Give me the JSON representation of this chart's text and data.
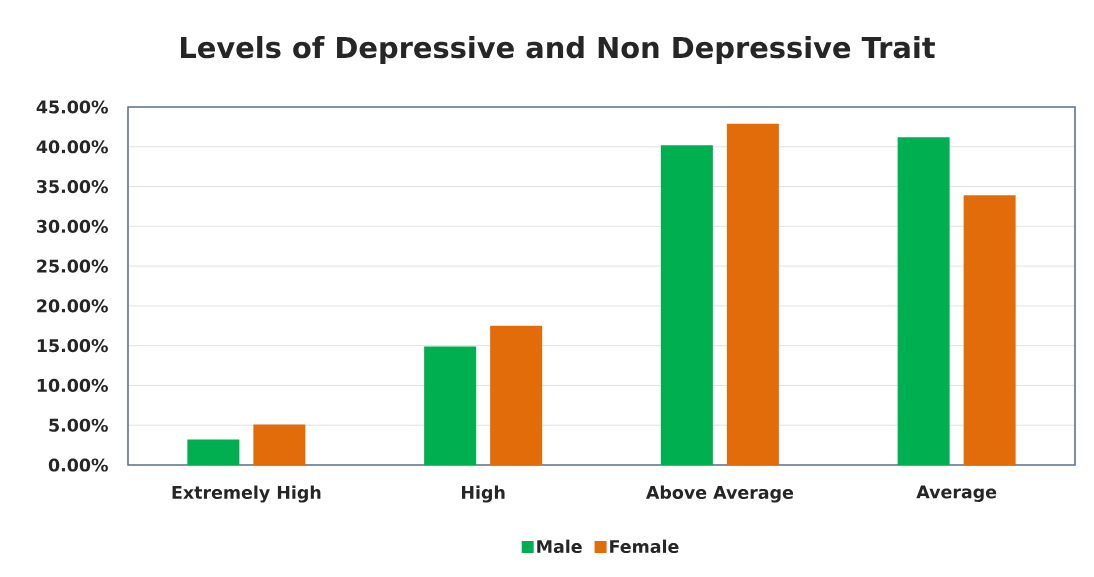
{
  "chart_data": {
    "type": "bar",
    "title": "Levels of Depressive and Non Depressive Trait",
    "categories": [
      "Extremely High",
      "High",
      "Above Average",
      "Average"
    ],
    "series": [
      {
        "name": "Male",
        "color": "#00b050",
        "values": [
          3.2,
          14.9,
          40.2,
          41.2
        ]
      },
      {
        "name": "Female",
        "color": "#e36c0a",
        "values": [
          5.1,
          17.5,
          42.9,
          33.9
        ]
      }
    ],
    "ylim": [
      0,
      45
    ],
    "yticks": [
      {
        "value": 0,
        "label": "0.00%"
      },
      {
        "value": 5,
        "label": "5.00%"
      },
      {
        "value": 10,
        "label": "10.00%"
      },
      {
        "value": 15,
        "label": "15.00%"
      },
      {
        "value": 20,
        "label": "20.00%"
      },
      {
        "value": 25,
        "label": "25.00%"
      },
      {
        "value": 30,
        "label": "30.00%"
      },
      {
        "value": 35,
        "label": "35.00%"
      },
      {
        "value": 40,
        "label": "40.00%"
      },
      {
        "value": 45,
        "label": "45.00%"
      }
    ],
    "grid": "y",
    "legend": "bottom"
  }
}
